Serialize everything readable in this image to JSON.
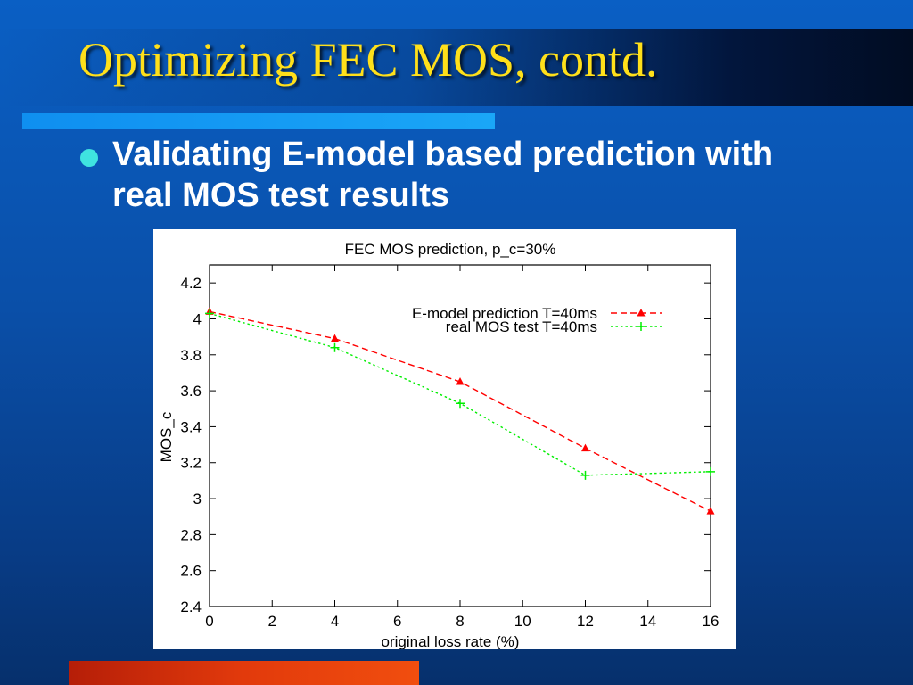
{
  "slide": {
    "title": "Optimizing FEC MOS, contd.",
    "bullet": "Validating E-model based prediction with real MOS test results"
  },
  "colors": {
    "title": "#ffe01a",
    "bullet_dot": "#3fe3e0",
    "series_emodel": "#ff0000",
    "series_real": "#00ee00"
  },
  "chart_data": {
    "type": "line",
    "title": "FEC MOS prediction, p_c=30%",
    "xlabel": "original loss rate (%)",
    "ylabel": "MOS_c",
    "xlim": [
      0,
      16
    ],
    "ylim": [
      2.4,
      4.3
    ],
    "x_ticks": [
      0,
      2,
      4,
      6,
      8,
      10,
      12,
      14,
      16
    ],
    "y_ticks": [
      2.4,
      2.6,
      2.8,
      3,
      3.2,
      3.4,
      3.6,
      3.8,
      4,
      4.2
    ],
    "y_tick_labels": [
      "2.4",
      "2.6",
      "2.8",
      "3",
      "3.2",
      "3.4",
      "3.6",
      "3.8",
      "4",
      "4.2"
    ],
    "legend_position": "top-right",
    "grid": false,
    "series": [
      {
        "name": "E-model prediction T=40ms",
        "marker": "triangle",
        "line": "dashed",
        "color": "#ff0000",
        "x": [
          0,
          4,
          8,
          12,
          16
        ],
        "y": [
          4.04,
          3.89,
          3.65,
          3.28,
          2.93
        ]
      },
      {
        "name": "real MOS test T=40ms",
        "marker": "plus",
        "line": "dotted",
        "color": "#00ee00",
        "x": [
          0,
          4,
          8,
          12,
          16
        ],
        "y": [
          4.03,
          3.84,
          3.53,
          3.13,
          3.15
        ]
      }
    ]
  }
}
